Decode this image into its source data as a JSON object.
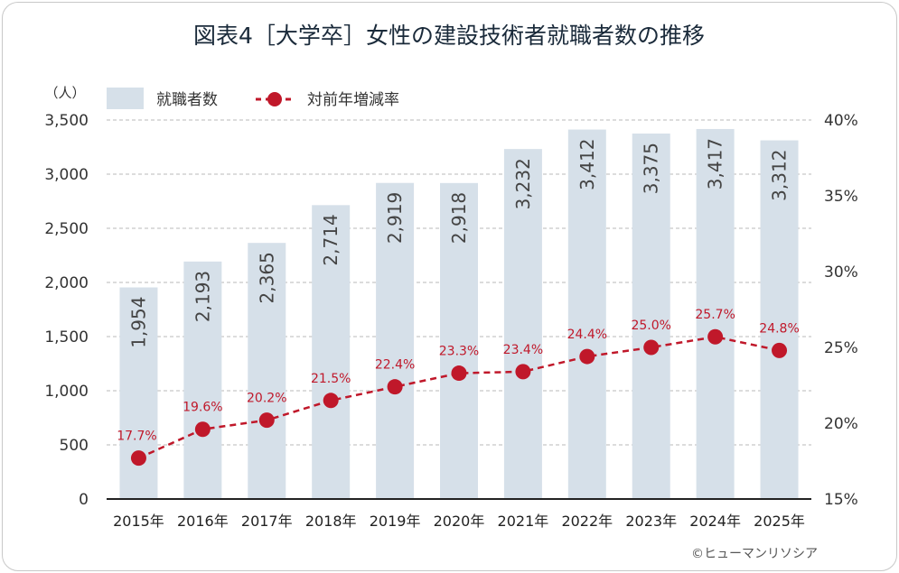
{
  "chart_data": {
    "type": "bar+line",
    "title": "図表4［大学卒］女性の建設技術者就職者数の推移",
    "categories": [
      "2015年",
      "2016年",
      "2017年",
      "2018年",
      "2019年",
      "2020年",
      "2021年",
      "2022年",
      "2023年",
      "2024年",
      "2025年"
    ],
    "series": [
      {
        "name": "就職者数",
        "type": "bar",
        "axis": "left",
        "color": "#d6e0e9",
        "values": [
          1954,
          2193,
          2365,
          2714,
          2919,
          2918,
          3232,
          3412,
          3375,
          3417,
          3312
        ],
        "labels": [
          "1,954",
          "2,193",
          "2,365",
          "2,714",
          "2,919",
          "2,918",
          "3,232",
          "3,412",
          "3,375",
          "3,417",
          "3,312"
        ]
      },
      {
        "name": "対前年増減率",
        "type": "line",
        "axis": "right",
        "color": "#c0182a",
        "style": "dashed",
        "values": [
          17.7,
          19.6,
          20.2,
          21.5,
          22.4,
          23.3,
          23.4,
          24.4,
          25.0,
          25.7,
          24.8
        ],
        "labels": [
          "17.7%",
          "19.6%",
          "20.2%",
          "21.5%",
          "22.4%",
          "23.3%",
          "23.4%",
          "24.4%",
          "25.0%",
          "25.7%",
          "24.8%"
        ]
      }
    ],
    "y_left": {
      "unit_label": "（人）",
      "range": [
        0,
        3500
      ],
      "ticks": [
        0,
        500,
        1000,
        1500,
        2000,
        2500,
        3000,
        3500
      ],
      "tick_labels": [
        "0",
        "500",
        "1,000",
        "1,500",
        "2,000",
        "2,500",
        "3,000",
        "3,500"
      ]
    },
    "y_right": {
      "range": [
        15,
        40
      ],
      "ticks": [
        15,
        20,
        25,
        30,
        35,
        40
      ],
      "tick_labels": [
        "15%",
        "20%",
        "25%",
        "30%",
        "35%",
        "40%"
      ]
    },
    "grid": "horizontal dashed",
    "legend": {
      "placement": "top-left",
      "entries": [
        "就職者数",
        "対前年増減率"
      ]
    },
    "credit": "©ヒューマンリソシア"
  }
}
